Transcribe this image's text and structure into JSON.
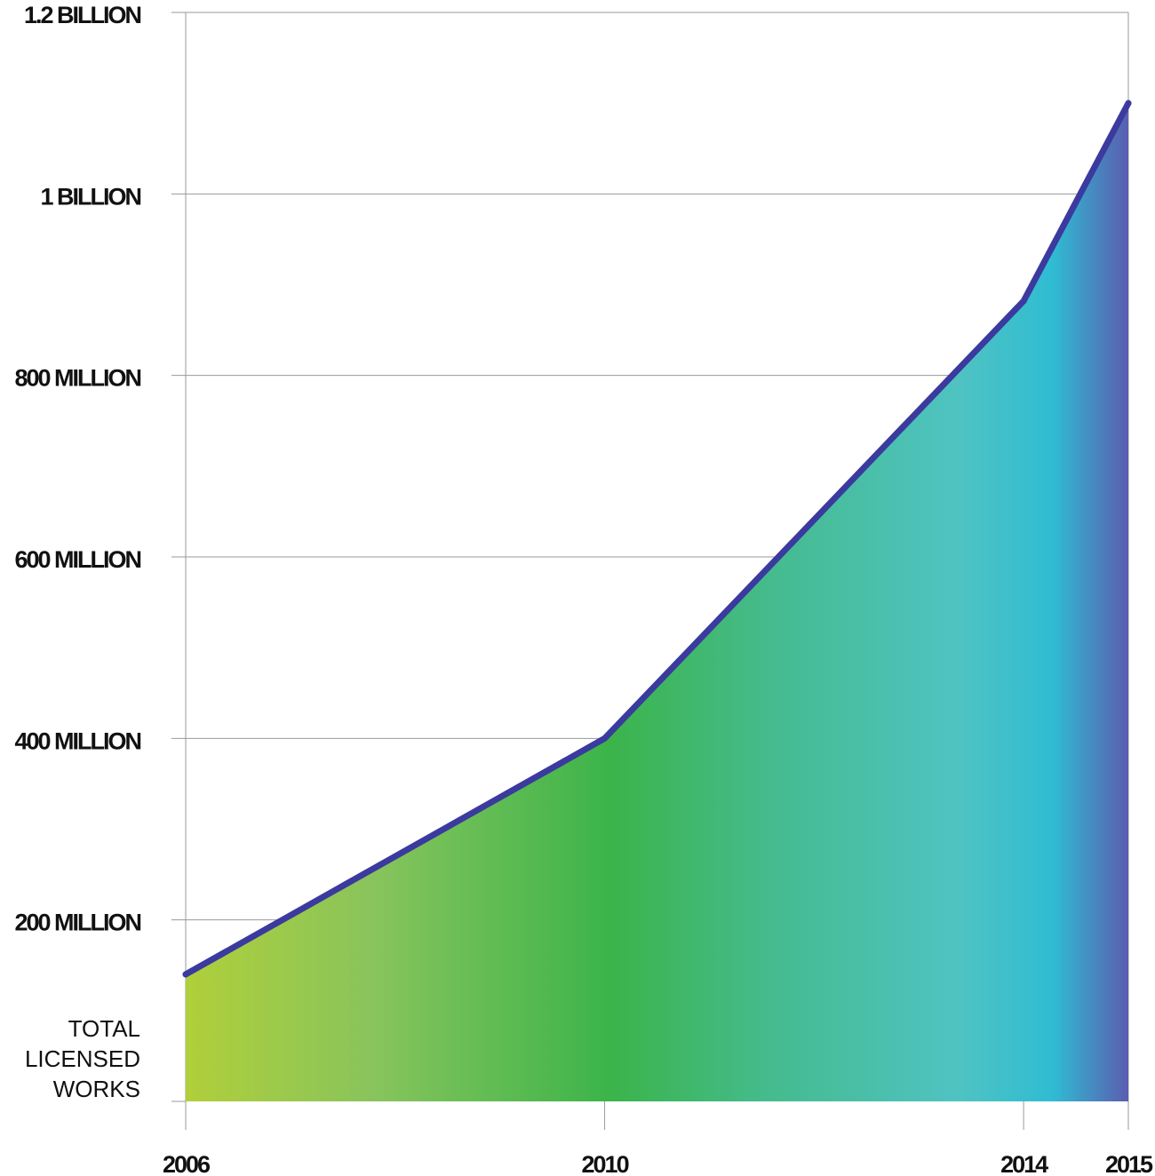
{
  "chart_data": {
    "type": "area",
    "title": "",
    "xlabel": "",
    "ylabel_lines": [
      "TOTAL",
      "LICENSED",
      "WORKS"
    ],
    "x": [
      2006,
      2010,
      2014,
      2015
    ],
    "values": [
      140000000,
      400000000,
      882000000,
      1100000000
    ],
    "xlim": [
      2006,
      2015
    ],
    "ylim": [
      0,
      1200000000
    ],
    "x_tick_labels": [
      "2006",
      "2010",
      "2014",
      "2015"
    ],
    "y_ticks": [
      200000000,
      400000000,
      600000000,
      800000000,
      1000000000,
      1200000000
    ],
    "y_tick_labels": [
      "200 MILLION",
      "400 MILLION",
      "600 MILLION",
      "800 MILLION",
      "1 BILLION",
      "1.2 BILLION"
    ],
    "grid": true,
    "legend": "none",
    "colors": {
      "line": "#3b3a9e",
      "gradient": [
        "#b0cf3a",
        "#88c45c",
        "#3bb44a",
        "#45bb8e",
        "#4fc3c2",
        "#2fbcd3",
        "#5a5db0"
      ]
    }
  }
}
